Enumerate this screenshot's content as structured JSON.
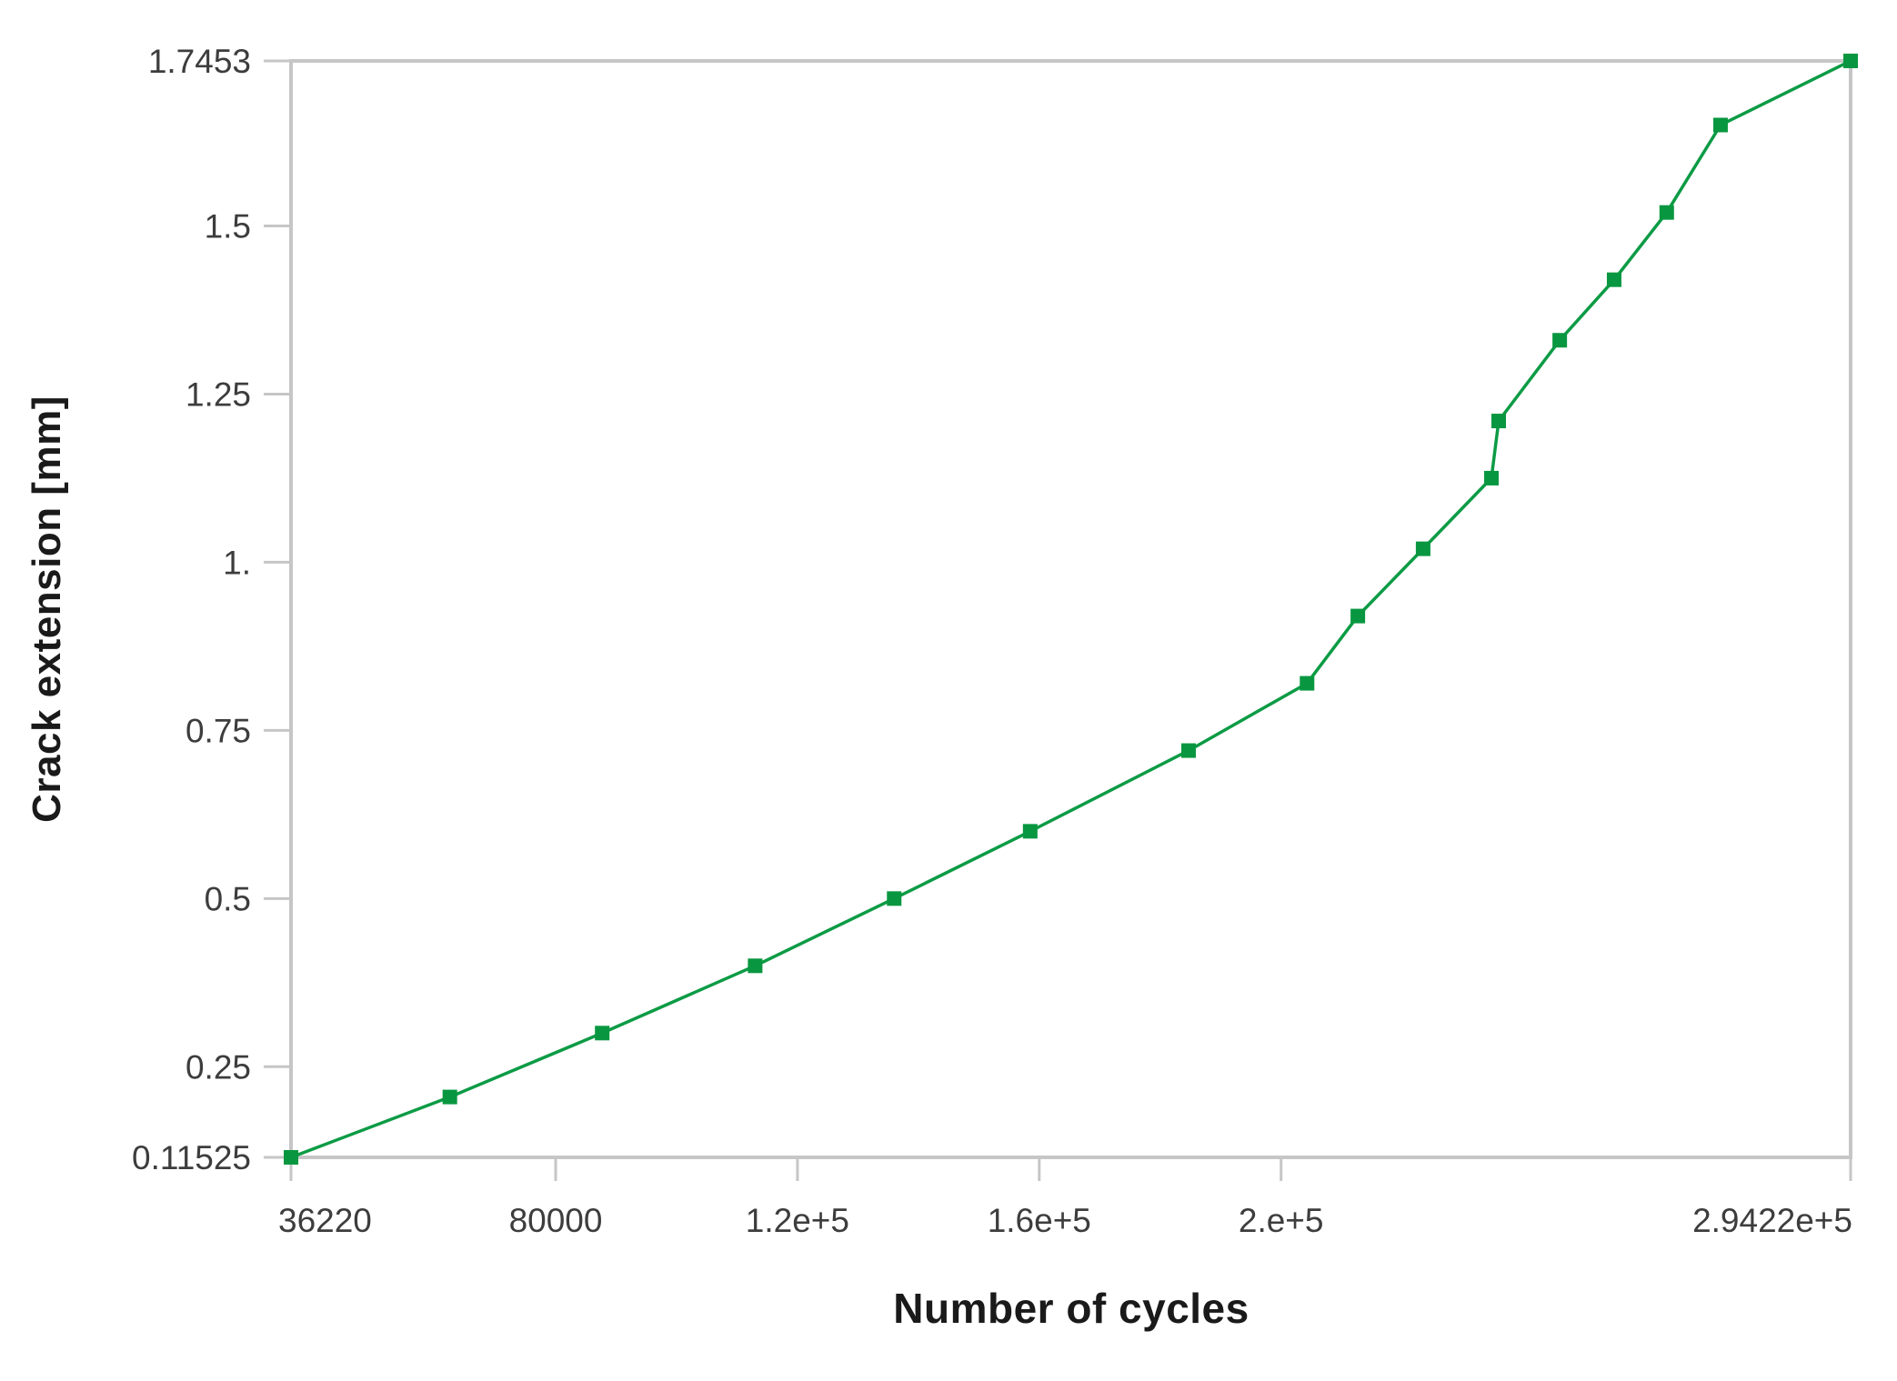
{
  "chart_data": {
    "type": "line",
    "title": "",
    "xlabel": "Number of cycles",
    "ylabel": "Crack extension [mm]",
    "xlim": [
      36220,
      294220
    ],
    "ylim": [
      0.11525,
      1.7453
    ],
    "grid": false,
    "legend_position": "none",
    "x_ticks": [
      {
        "value": 36220,
        "label": "36220"
      },
      {
        "value": 80000,
        "label": "80000"
      },
      {
        "value": 120000,
        "label": "1.2e+5"
      },
      {
        "value": 160000,
        "label": "1.6e+5"
      },
      {
        "value": 200000,
        "label": "2.e+5"
      },
      {
        "value": 294220,
        "label": "2.9422e+5"
      }
    ],
    "y_ticks": [
      {
        "value": 1.7453,
        "label": "1.7453"
      },
      {
        "value": 1.5,
        "label": "1.5"
      },
      {
        "value": 1.25,
        "label": "1.25"
      },
      {
        "value": 1.0,
        "label": "1."
      },
      {
        "value": 0.75,
        "label": "0.75"
      },
      {
        "value": 0.5,
        "label": "0.5"
      },
      {
        "value": 0.25,
        "label": "0.25"
      },
      {
        "value": 0.11525,
        "label": "0.11525"
      }
    ],
    "series": [
      {
        "name": "crack-extension",
        "marker": "square",
        "points": [
          [
            36220,
            0.11525
          ],
          [
            62500,
            0.205
          ],
          [
            87700,
            0.3
          ],
          [
            113000,
            0.4
          ],
          [
            136000,
            0.5
          ],
          [
            158500,
            0.6
          ],
          [
            184700,
            0.72
          ],
          [
            204300,
            0.82
          ],
          [
            212700,
            0.92
          ],
          [
            223500,
            1.02
          ],
          [
            234800,
            1.125
          ],
          [
            236000,
            1.21
          ],
          [
            246100,
            1.33
          ],
          [
            255100,
            1.42
          ],
          [
            263800,
            1.52
          ],
          [
            272700,
            1.65
          ],
          [
            294220,
            1.7453
          ]
        ]
      }
    ]
  },
  "colors": {
    "series_green": "#0c9b45",
    "marker_green": "#089740",
    "axis_grey": "#c6c6c6",
    "tick_text": "#3d3d3d",
    "title_text": "#1a1a1a",
    "background": "#ffffff"
  }
}
